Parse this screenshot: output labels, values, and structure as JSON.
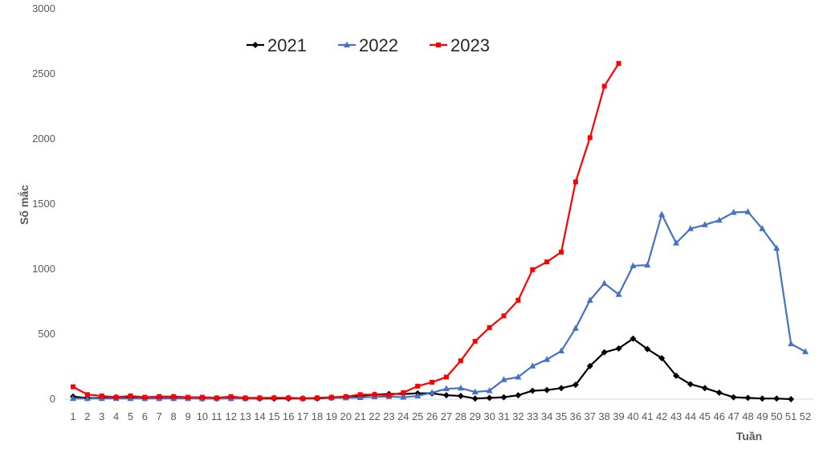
{
  "chart_data": {
    "type": "line",
    "title": "",
    "xlabel": "Tuần",
    "ylabel": "Số mắc",
    "ylim": [
      0,
      3000
    ],
    "y_ticks": [
      0,
      500,
      1000,
      1500,
      2000,
      2500,
      3000
    ],
    "grid": false,
    "legend_position": "top",
    "x": [
      1,
      2,
      3,
      4,
      5,
      6,
      7,
      8,
      9,
      10,
      11,
      12,
      13,
      14,
      15,
      16,
      17,
      18,
      19,
      20,
      21,
      22,
      23,
      24,
      25,
      26,
      27,
      28,
      29,
      30,
      31,
      32,
      33,
      34,
      35,
      36,
      37,
      38,
      39,
      40,
      41,
      42,
      43,
      44,
      45,
      46,
      47,
      48,
      49,
      50,
      51,
      52
    ],
    "series": [
      {
        "name": "2021",
        "color": "#000000",
        "marker": "diamond",
        "values": [
          20,
          8,
          10,
          15,
          10,
          8,
          8,
          8,
          8,
          5,
          5,
          8,
          5,
          5,
          5,
          5,
          5,
          5,
          10,
          15,
          25,
          35,
          40,
          40,
          45,
          45,
          30,
          25,
          5,
          10,
          15,
          30,
          65,
          70,
          85,
          110,
          255,
          360,
          390,
          465,
          385,
          315,
          180,
          115,
          85,
          50,
          15,
          10,
          5,
          5,
          0,
          null
        ]
      },
      {
        "name": "2022",
        "color": "#4472C4",
        "marker": "triangle",
        "values": [
          5,
          5,
          5,
          5,
          5,
          5,
          5,
          5,
          5,
          5,
          5,
          5,
          5,
          8,
          10,
          10,
          8,
          8,
          10,
          10,
          12,
          18,
          20,
          15,
          25,
          50,
          80,
          85,
          55,
          65,
          150,
          170,
          255,
          305,
          370,
          545,
          760,
          890,
          805,
          1025,
          1030,
          1420,
          1200,
          1310,
          1340,
          1375,
          1435,
          1440,
          1310,
          1160,
          425,
          365
        ]
      },
      {
        "name": "2023",
        "color": "#FF0000",
        "marker": "square",
        "values": [
          95,
          35,
          25,
          15,
          25,
          15,
          20,
          20,
          15,
          15,
          10,
          20,
          10,
          10,
          10,
          10,
          5,
          10,
          15,
          20,
          35,
          35,
          30,
          50,
          100,
          130,
          170,
          295,
          445,
          550,
          640,
          760,
          995,
          1055,
          1130,
          1670,
          2010,
          2405,
          2580,
          null,
          null,
          null,
          null,
          null,
          null,
          null,
          null,
          null,
          null,
          null,
          null,
          null
        ]
      }
    ]
  }
}
